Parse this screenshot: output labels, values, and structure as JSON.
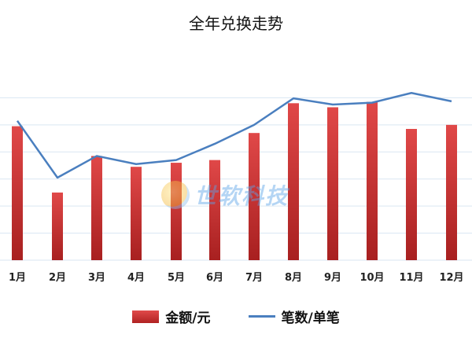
{
  "chart_data": {
    "type": "bar",
    "title": "全年兑换走势",
    "categories": [
      "1月",
      "2月",
      "3月",
      "4月",
      "5月",
      "6月",
      "7月",
      "8月",
      "9月",
      "10月",
      "11月",
      "12月"
    ],
    "series": [
      {
        "name": "金额/元",
        "type": "bar",
        "color": "#c83232",
        "values": [
          4.95,
          2.5,
          3.85,
          3.45,
          3.6,
          3.7,
          4.7,
          5.8,
          5.65,
          5.85,
          4.85,
          5.0
        ]
      },
      {
        "name": "笔数/单笔",
        "type": "line",
        "color": "#4a7fbf",
        "values": [
          5.15,
          3.05,
          3.85,
          3.55,
          3.7,
          4.3,
          5.0,
          5.98,
          5.75,
          5.82,
          6.18,
          5.87
        ]
      }
    ],
    "ylim": [
      0,
      7
    ],
    "grid": true,
    "legend": "bottom"
  },
  "watermark": {
    "text": "世软科技"
  }
}
